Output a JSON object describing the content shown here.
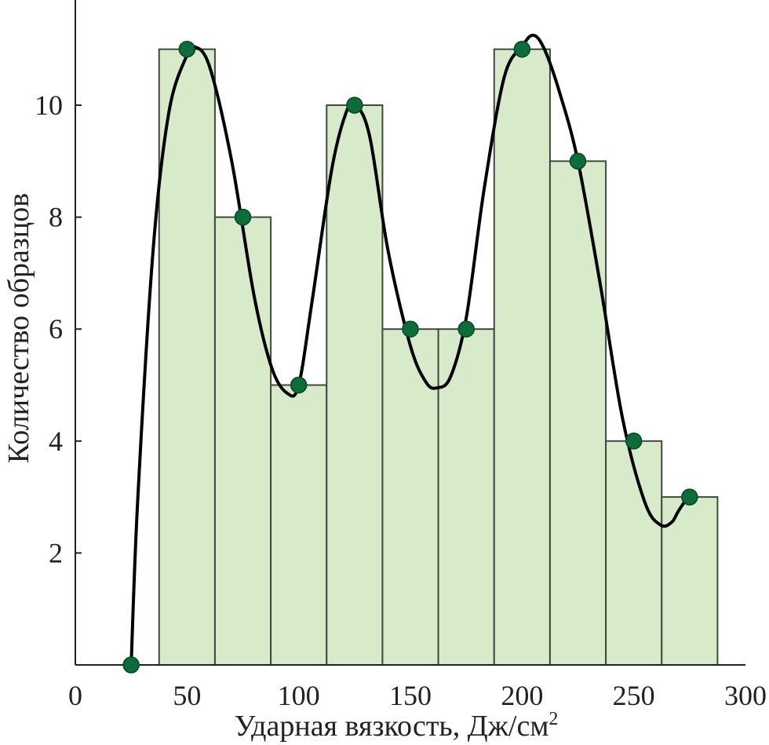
{
  "chart_data": {
    "type": "bar",
    "xlabel": "Ударная вязкость, Дж/см",
    "xlabel_sup": "2",
    "ylabel": "Количество образцов",
    "xlim": [
      0,
      300
    ],
    "ylim": [
      0,
      11.9
    ],
    "x_ticks": [
      "0",
      "50",
      "100",
      "150",
      "200",
      "250",
      "300"
    ],
    "y_ticks": [
      "2",
      "4",
      "6",
      "8",
      "10"
    ],
    "grid": false,
    "bin_width": 25,
    "series": [
      {
        "type": "bar",
        "x": [
          50,
          75,
          100,
          125,
          150,
          175,
          200,
          225,
          250,
          275
        ],
        "values": [
          11,
          8,
          5,
          10,
          6,
          6,
          11,
          9,
          4,
          3
        ]
      },
      {
        "type": "scatter",
        "x": [
          25,
          50,
          75,
          100,
          125,
          150,
          175,
          200,
          225,
          250,
          275
        ],
        "values": [
          0,
          11,
          8,
          5,
          10,
          6,
          6,
          11,
          9,
          4,
          3
        ]
      },
      {
        "type": "line",
        "x": [
          25,
          28,
          35,
          42,
          50,
          53,
          60,
          70,
          80,
          88,
          95,
          100,
          106,
          115,
          122,
          126,
          132,
          140,
          150,
          157,
          162,
          168,
          175,
          183,
          192,
          200,
          205,
          210,
          217,
          225,
          235,
          245,
          255,
          262,
          267,
          270,
          275
        ],
        "values": [
          0,
          3.0,
          7.5,
          9.9,
          10.9,
          11.05,
          10.7,
          9.0,
          6.6,
          5.3,
          4.85,
          5.0,
          6.5,
          8.9,
          9.95,
          10.0,
          9.4,
          7.4,
          5.7,
          5.05,
          4.95,
          5.15,
          6.2,
          8.5,
          10.5,
          11.05,
          11.25,
          11.0,
          10.2,
          9.0,
          6.8,
          4.4,
          2.9,
          2.5,
          2.55,
          2.75,
          3.05
        ]
      }
    ]
  }
}
